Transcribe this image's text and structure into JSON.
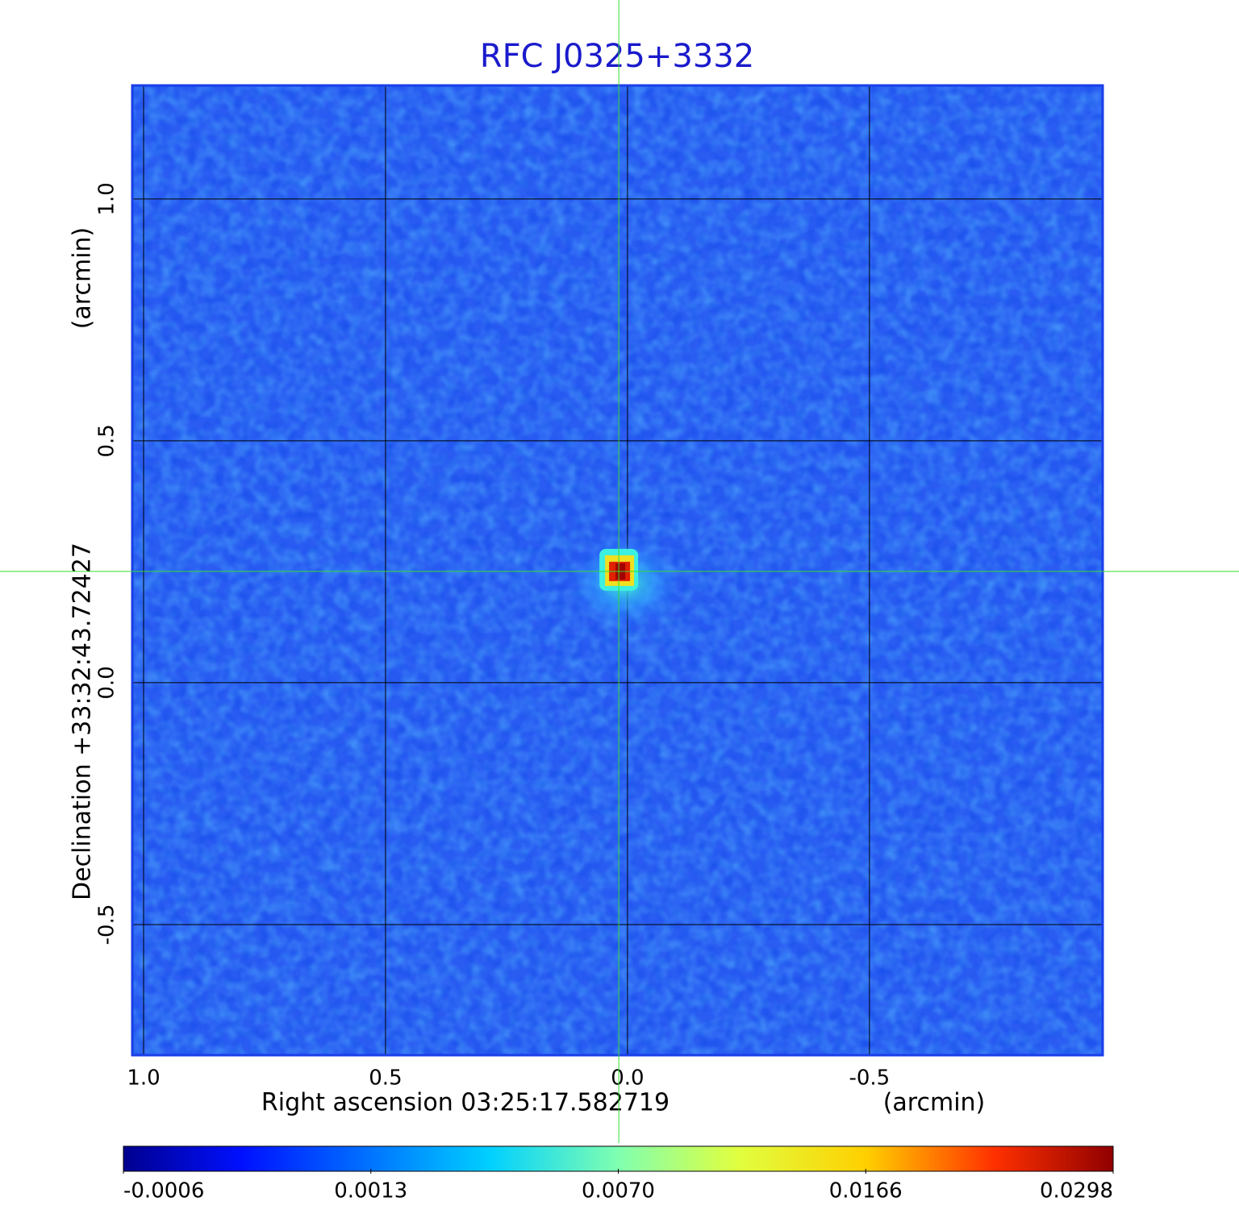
{
  "chart_data": {
    "type": "image",
    "title": "RFC J0325+3332",
    "xlabel": "Right ascension  03:25:17.582719",
    "xunit": "(arcmin)",
    "ylabel": "Declination  +33:32:43.72427",
    "yunit": "(arcmin)",
    "xlim": [
      1.025,
      -0.982
    ],
    "ylim": [
      -0.77,
      1.233
    ],
    "xticks": [
      {
        "value": 1,
        "label": "1.0"
      },
      0.5,
      {
        "value": 0,
        "label": "0.0"
      },
      -0.5
    ],
    "yticks": [
      -0.5,
      {
        "value": 0,
        "label": "0.0"
      },
      0.5,
      {
        "value": 1,
        "label": "1.0"
      }
    ],
    "grid": true,
    "colormap": "jet",
    "colorbar_ticks": [
      {
        "value": -0.0006,
        "label": "-0.0006"
      },
      {
        "value": 0.0013,
        "label": "0.0013"
      },
      {
        "value": 0.007,
        "label": "0.0070"
      },
      {
        "value": 0.0166,
        "label": "0.0166"
      },
      {
        "value": 0.0298,
        "label": "0.0298"
      }
    ],
    "source": {
      "x": 0.018,
      "y": 0.23,
      "peak": 0.0298
    }
  }
}
